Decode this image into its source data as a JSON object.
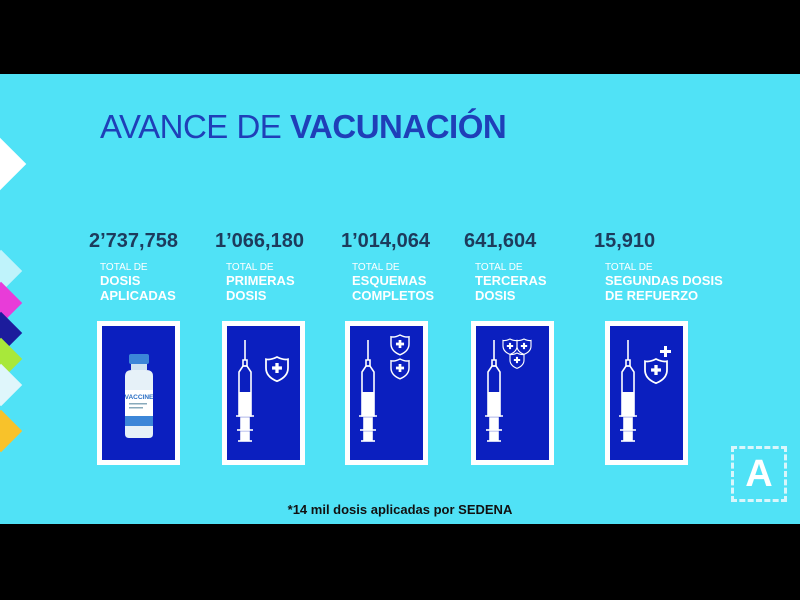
{
  "title": {
    "light": "AVANCE DE ",
    "bold": "VACUNACIÓN"
  },
  "stats": [
    {
      "value": "2’737,758",
      "label_small": "TOTAL DE",
      "label_big": "DOSIS\nAPLICADAS",
      "icon": "vaccine-vial"
    },
    {
      "value": "1’066,180",
      "label_small": "TOTAL DE",
      "label_big": "PRIMERAS\nDOSIS",
      "icon": "syringe-one-shield"
    },
    {
      "value": "1’014,064",
      "label_small": "TOTAL DE",
      "label_big": "ESQUEMAS\nCOMPLETOS",
      "icon": "syringe-two-shields"
    },
    {
      "value": "641,604",
      "label_small": "TOTAL DE",
      "label_big": "TERCERAS\nDOSIS",
      "icon": "syringe-three-shields"
    },
    {
      "value": "15,910",
      "label_small": "TOTAL DE",
      "label_big": "SEGUNDAS DOSIS\nDE REFUERZO",
      "icon": "syringe-shield-plus"
    }
  ],
  "vial_label": "VACCINE",
  "footnote": "*14 mil dosis aplicadas por SEDENA",
  "logo": "A",
  "colors": {
    "background": "#50e2f6",
    "card": "#0b1fbf",
    "title": "#1f3fb8",
    "numbers": "#1d3b5c"
  }
}
